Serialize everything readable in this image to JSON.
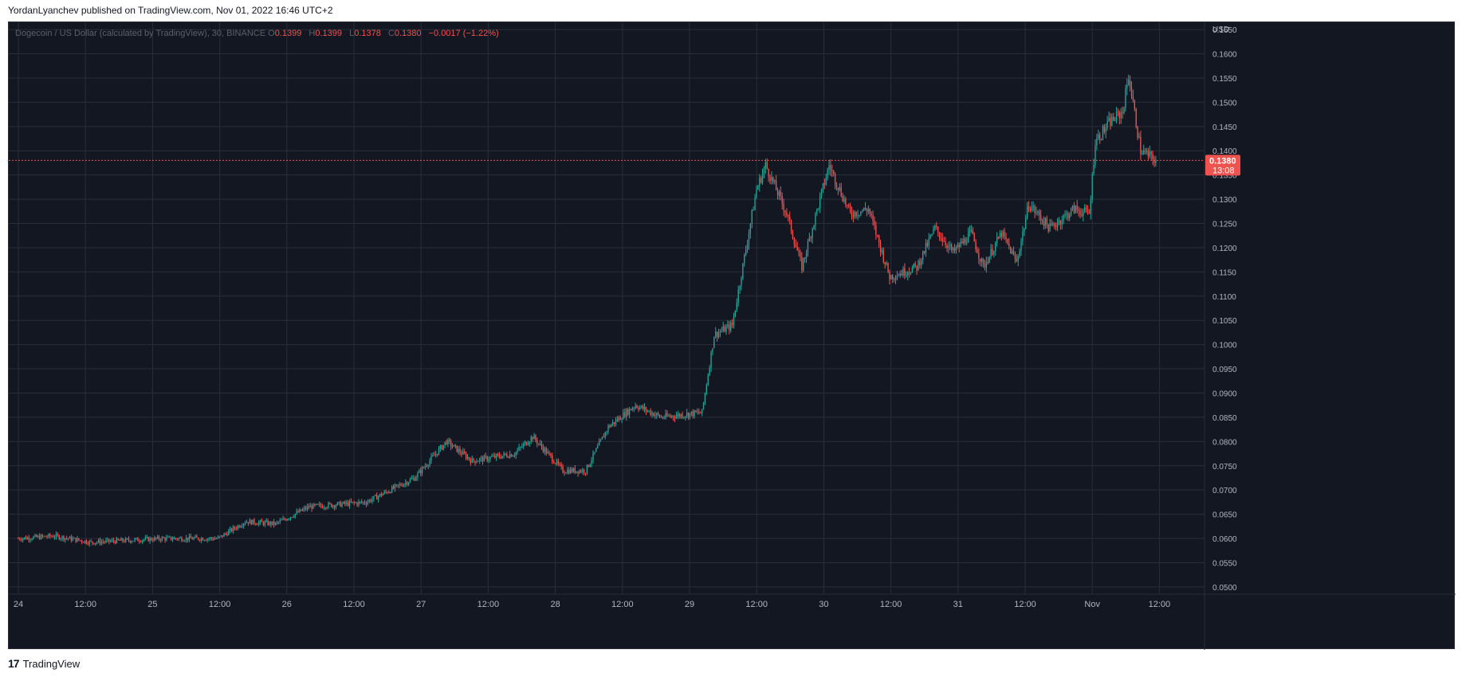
{
  "header": {
    "text": "YordanLyanchev published on TradingView.com, Nov 01, 2022 16:46 UTC+2"
  },
  "legend": {
    "symbol": "Dogecoin / US Dollar (calculated by TradingView), 30, BINANCE",
    "o_label": "O",
    "o_value": "0.1399",
    "h_label": "H",
    "h_value": "0.1399",
    "l_label": "L",
    "l_value": "0.1378",
    "c_label": "C",
    "c_value": "0.1380",
    "change": "−0.0017 (−1.22%)"
  },
  "price_tag": {
    "value": "0.1380",
    "countdown": "13:08",
    "color": "#ef5350"
  },
  "footer": {
    "logo": "17",
    "label": "TradingView"
  },
  "colors": {
    "up": "#26a69a",
    "down": "#ef5350",
    "background": "#131722",
    "grid": "#2a2e39",
    "axis_text": "#b2b5be"
  },
  "chart_data": {
    "type": "candlestick",
    "title": "Dogecoin / US Dollar (calculated by TradingView), 30, BINANCE",
    "currency_label": "USD",
    "ylim": [
      0.0485,
      0.1665
    ],
    "y_ticks": [
      "0.1650",
      "0.1600",
      "0.1550",
      "0.1500",
      "0.1450",
      "0.1400",
      "0.1350",
      "0.1300",
      "0.1250",
      "0.1200",
      "0.1150",
      "0.1100",
      "0.1050",
      "0.1000",
      "0.0950",
      "0.0900",
      "0.0850",
      "0.0800",
      "0.0750",
      "0.0700",
      "0.0650",
      "0.0600",
      "0.0550",
      "0.0500"
    ],
    "x_ticks": [
      "24",
      "12:00",
      "25",
      "12:00",
      "26",
      "12:00",
      "27",
      "12:00",
      "28",
      "12:00",
      "29",
      "12:00",
      "30",
      "12:00",
      "31",
      "12:00",
      "Nov",
      "12:00"
    ],
    "grid": true,
    "last_price": 0.138,
    "interval": "30 min",
    "approx_path_anchors": [
      {
        "t": 0,
        "price": 0.06
      },
      {
        "t": 24,
        "price": 0.0605
      },
      {
        "t": 48,
        "price": 0.0592
      },
      {
        "t": 96,
        "price": 0.06
      },
      {
        "t": 132,
        "price": 0.06
      },
      {
        "t": 150,
        "price": 0.0635
      },
      {
        "t": 170,
        "price": 0.063
      },
      {
        "t": 192,
        "price": 0.0665
      },
      {
        "t": 230,
        "price": 0.0675
      },
      {
        "t": 262,
        "price": 0.0725
      },
      {
        "t": 283,
        "price": 0.08
      },
      {
        "t": 300,
        "price": 0.076
      },
      {
        "t": 328,
        "price": 0.0775
      },
      {
        "t": 340,
        "price": 0.081
      },
      {
        "t": 360,
        "price": 0.074
      },
      {
        "t": 375,
        "price": 0.074
      },
      {
        "t": 390,
        "price": 0.083
      },
      {
        "t": 408,
        "price": 0.0875
      },
      {
        "t": 425,
        "price": 0.085
      },
      {
        "t": 452,
        "price": 0.086
      },
      {
        "t": 460,
        "price": 0.102
      },
      {
        "t": 472,
        "price": 0.104
      },
      {
        "t": 488,
        "price": 0.132
      },
      {
        "t": 494,
        "price": 0.137
      },
      {
        "t": 508,
        "price": 0.127
      },
      {
        "t": 518,
        "price": 0.116
      },
      {
        "t": 536,
        "price": 0.137
      },
      {
        "t": 550,
        "price": 0.127
      },
      {
        "t": 562,
        "price": 0.128
      },
      {
        "t": 576,
        "price": 0.114
      },
      {
        "t": 594,
        "price": 0.116
      },
      {
        "t": 606,
        "price": 0.124
      },
      {
        "t": 618,
        "price": 0.119
      },
      {
        "t": 630,
        "price": 0.123
      },
      {
        "t": 638,
        "price": 0.116
      },
      {
        "t": 650,
        "price": 0.123
      },
      {
        "t": 660,
        "price": 0.117
      },
      {
        "t": 668,
        "price": 0.129
      },
      {
        "t": 682,
        "price": 0.124
      },
      {
        "t": 698,
        "price": 0.128
      },
      {
        "t": 708,
        "price": 0.127
      },
      {
        "t": 712,
        "price": 0.142
      },
      {
        "t": 722,
        "price": 0.146
      },
      {
        "t": 730,
        "price": 0.148
      },
      {
        "t": 734,
        "price": 0.1555
      },
      {
        "t": 742,
        "price": 0.14
      },
      {
        "t": 752,
        "price": 0.138
      }
    ]
  }
}
